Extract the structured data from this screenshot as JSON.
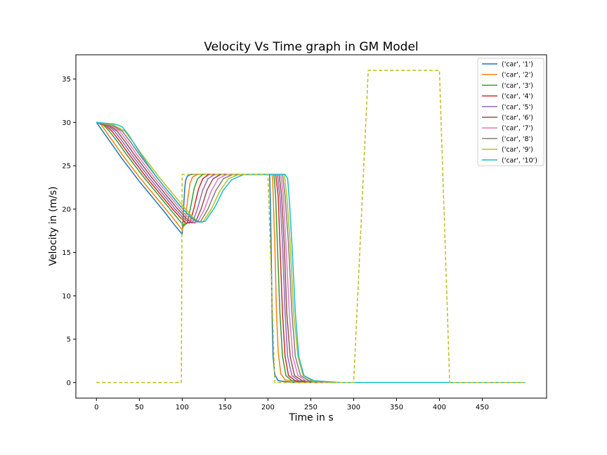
{
  "chart_data": {
    "type": "line",
    "title": "Velocity  Vs Time graph in GM Model",
    "xlabel": "Time in s",
    "ylabel": "Velocity in (m/s)",
    "xlim": [
      -24,
      525
    ],
    "ylim": [
      -1.8,
      37.8
    ],
    "xticks": [
      0,
      50,
      100,
      150,
      200,
      250,
      300,
      350,
      400,
      450
    ],
    "yticks": [
      0,
      5,
      10,
      15,
      20,
      25,
      30,
      35
    ],
    "grid": false,
    "legend_position": "top-right",
    "reference": {
      "color": "#bcbd22",
      "style": "dashed",
      "points": [
        [
          0,
          0
        ],
        [
          99,
          0
        ],
        [
          100,
          24
        ],
        [
          200,
          24
        ],
        [
          208,
          0
        ],
        [
          300,
          0
        ],
        [
          317,
          36
        ],
        [
          400,
          36
        ],
        [
          412,
          0
        ],
        [
          500,
          0
        ]
      ]
    },
    "series": [
      {
        "name": "('car', '1')",
        "color": "#1f77b4",
        "points": [
          [
            0,
            30
          ],
          [
            10,
            28.6
          ],
          [
            20,
            27.2
          ],
          [
            30,
            25.8
          ],
          [
            40,
            24.5
          ],
          [
            50,
            23.2
          ],
          [
            60,
            22
          ],
          [
            70,
            20.8
          ],
          [
            80,
            19.6
          ],
          [
            90,
            18.3
          ],
          [
            100,
            17.1
          ],
          [
            101,
            18.7
          ],
          [
            102,
            20.8
          ],
          [
            103,
            22.4
          ],
          [
            104,
            23.3
          ],
          [
            106,
            23.8
          ],
          [
            110,
            24
          ],
          [
            160,
            24
          ],
          [
            202,
            24
          ],
          [
            203,
            20
          ],
          [
            204,
            14
          ],
          [
            205,
            7
          ],
          [
            206,
            3
          ],
          [
            208,
            0.9
          ],
          [
            212,
            0.2
          ],
          [
            230,
            0
          ],
          [
            500,
            0
          ]
        ]
      },
      {
        "name": "('car', '2')",
        "color": "#ff7f0e",
        "points": [
          [
            0,
            30
          ],
          [
            5,
            29.8
          ],
          [
            10,
            29.1
          ],
          [
            20,
            27.7
          ],
          [
            30,
            26.3
          ],
          [
            40,
            25
          ],
          [
            50,
            23.7
          ],
          [
            60,
            22.5
          ],
          [
            70,
            21.3
          ],
          [
            80,
            20.1
          ],
          [
            90,
            18.9
          ],
          [
            100,
            17.6
          ],
          [
            103,
            18.4
          ],
          [
            106,
            20.8
          ],
          [
            109,
            22.9
          ],
          [
            112,
            23.7
          ],
          [
            118,
            24
          ],
          [
            205,
            24
          ],
          [
            206,
            22
          ],
          [
            208,
            16
          ],
          [
            210,
            8
          ],
          [
            212,
            3.5
          ],
          [
            215,
            1
          ],
          [
            220,
            0.3
          ],
          [
            240,
            0
          ],
          [
            500,
            0
          ]
        ]
      },
      {
        "name": "('car', '3')",
        "color": "#2ca02c",
        "points": [
          [
            0,
            30
          ],
          [
            8,
            29.7
          ],
          [
            15,
            29
          ],
          [
            25,
            27.7
          ],
          [
            35,
            26.3
          ],
          [
            45,
            25
          ],
          [
            55,
            23.7
          ],
          [
            65,
            22.5
          ],
          [
            75,
            21.3
          ],
          [
            85,
            20.1
          ],
          [
            95,
            18.9
          ],
          [
            102,
            18.1
          ],
          [
            106,
            18.4
          ],
          [
            110,
            20.3
          ],
          [
            114,
            22.4
          ],
          [
            118,
            23.5
          ],
          [
            124,
            24
          ],
          [
            207,
            24
          ],
          [
            209,
            21.5
          ],
          [
            211,
            16
          ],
          [
            214,
            8
          ],
          [
            217,
            3
          ],
          [
            221,
            0.8
          ],
          [
            228,
            0.2
          ],
          [
            250,
            0
          ],
          [
            500,
            0
          ]
        ]
      },
      {
        "name": "('car', '4')",
        "color": "#d62728",
        "points": [
          [
            0,
            30
          ],
          [
            10,
            29.7
          ],
          [
            18,
            29
          ],
          [
            28,
            27.7
          ],
          [
            38,
            26.3
          ],
          [
            48,
            25
          ],
          [
            58,
            23.7
          ],
          [
            68,
            22.5
          ],
          [
            78,
            21.3
          ],
          [
            88,
            20.1
          ],
          [
            98,
            19
          ],
          [
            104,
            18.4
          ],
          [
            109,
            18.4
          ],
          [
            114,
            20.2
          ],
          [
            119,
            22.3
          ],
          [
            124,
            23.5
          ],
          [
            131,
            24
          ],
          [
            209,
            24
          ],
          [
            212,
            21.5
          ],
          [
            214,
            16
          ],
          [
            217,
            8
          ],
          [
            220,
            3
          ],
          [
            224,
            0.8
          ],
          [
            232,
            0.2
          ],
          [
            255,
            0
          ],
          [
            500,
            0
          ]
        ]
      },
      {
        "name": "('car', '5')",
        "color": "#9467bd",
        "points": [
          [
            0,
            30
          ],
          [
            12,
            29.7
          ],
          [
            21,
            29
          ],
          [
            31,
            27.7
          ],
          [
            41,
            26.3
          ],
          [
            51,
            25
          ],
          [
            61,
            23.7
          ],
          [
            71,
            22.5
          ],
          [
            81,
            21.3
          ],
          [
            91,
            20.1
          ],
          [
            101,
            19
          ],
          [
            107,
            18.5
          ],
          [
            112,
            18.4
          ],
          [
            118,
            20.1
          ],
          [
            124,
            22.2
          ],
          [
            130,
            23.5
          ],
          [
            138,
            24
          ],
          [
            211,
            24
          ],
          [
            214,
            21.5
          ],
          [
            217,
            16
          ],
          [
            220,
            8
          ],
          [
            223,
            3
          ],
          [
            228,
            0.8
          ],
          [
            236,
            0.2
          ],
          [
            260,
            0
          ],
          [
            500,
            0
          ]
        ]
      },
      {
        "name": "('car', '6')",
        "color": "#8c564b",
        "points": [
          [
            0,
            30
          ],
          [
            14,
            29.7
          ],
          [
            24,
            29
          ],
          [
            34,
            27.7
          ],
          [
            44,
            26.3
          ],
          [
            54,
            25
          ],
          [
            64,
            23.7
          ],
          [
            74,
            22.5
          ],
          [
            84,
            21.3
          ],
          [
            94,
            20.1
          ],
          [
            104,
            19
          ],
          [
            110,
            18.5
          ],
          [
            115,
            18.4
          ],
          [
            122,
            20
          ],
          [
            129,
            22.2
          ],
          [
            136,
            23.5
          ],
          [
            145,
            24
          ],
          [
            213,
            24
          ],
          [
            216,
            21.5
          ],
          [
            219,
            16
          ],
          [
            222,
            8
          ],
          [
            226,
            3
          ],
          [
            231,
            0.8
          ],
          [
            240,
            0.2
          ],
          [
            265,
            0
          ],
          [
            500,
            0
          ]
        ]
      },
      {
        "name": "('car', '7')",
        "color": "#e377c2",
        "points": [
          [
            0,
            30
          ],
          [
            16,
            29.7
          ],
          [
            27,
            29
          ],
          [
            37,
            27.7
          ],
          [
            47,
            26.3
          ],
          [
            57,
            25
          ],
          [
            67,
            23.7
          ],
          [
            77,
            22.5
          ],
          [
            87,
            21.3
          ],
          [
            97,
            20.1
          ],
          [
            107,
            19
          ],
          [
            113,
            18.5
          ],
          [
            118,
            18.5
          ],
          [
            126,
            20
          ],
          [
            134,
            22.1
          ],
          [
            142,
            23.5
          ],
          [
            152,
            24
          ],
          [
            215,
            24
          ],
          [
            218,
            21.5
          ],
          [
            221,
            16
          ],
          [
            225,
            8
          ],
          [
            229,
            3
          ],
          [
            235,
            0.8
          ],
          [
            244,
            0.2
          ],
          [
            270,
            0
          ],
          [
            500,
            0
          ]
        ]
      },
      {
        "name": "('car', '8')",
        "color": "#7f7f7f",
        "points": [
          [
            0,
            30
          ],
          [
            18,
            29.7
          ],
          [
            30,
            29
          ],
          [
            40,
            27.7
          ],
          [
            50,
            26.3
          ],
          [
            60,
            25
          ],
          [
            70,
            23.7
          ],
          [
            80,
            22.5
          ],
          [
            90,
            21.3
          ],
          [
            100,
            20.1
          ],
          [
            110,
            19
          ],
          [
            116,
            18.6
          ],
          [
            121,
            18.5
          ],
          [
            130,
            20
          ],
          [
            139,
            22.1
          ],
          [
            148,
            23.5
          ],
          [
            159,
            24
          ],
          [
            217,
            24
          ],
          [
            220,
            21.5
          ],
          [
            224,
            16
          ],
          [
            228,
            8
          ],
          [
            232,
            3
          ],
          [
            238,
            0.8
          ],
          [
            248,
            0.2
          ],
          [
            275,
            0
          ],
          [
            500,
            0
          ]
        ]
      },
      {
        "name": "('car', '9')",
        "color": "#bcbd22",
        "points": [
          [
            0,
            30
          ],
          [
            20,
            29.7
          ],
          [
            33,
            29
          ],
          [
            43,
            27.7
          ],
          [
            53,
            26.3
          ],
          [
            63,
            25
          ],
          [
            73,
            23.7
          ],
          [
            83,
            22.5
          ],
          [
            93,
            21.3
          ],
          [
            103,
            20.1
          ],
          [
            113,
            19
          ],
          [
            119,
            18.6
          ],
          [
            124,
            18.5
          ],
          [
            134,
            20
          ],
          [
            144,
            22.1
          ],
          [
            154,
            23.5
          ],
          [
            166,
            24
          ],
          [
            219,
            24
          ],
          [
            222,
            21.5
          ],
          [
            226,
            16
          ],
          [
            230,
            8
          ],
          [
            235,
            3
          ],
          [
            241,
            0.8
          ],
          [
            252,
            0.2
          ],
          [
            280,
            0
          ],
          [
            500,
            0
          ]
        ]
      },
      {
        "name": "('car', '10')",
        "color": "#17becf",
        "points": [
          [
            0,
            30
          ],
          [
            22,
            29.8
          ],
          [
            30,
            29.5
          ],
          [
            38,
            28.5
          ],
          [
            48,
            26.9
          ],
          [
            58,
            25.4
          ],
          [
            68,
            24
          ],
          [
            78,
            22.7
          ],
          [
            88,
            21.5
          ],
          [
            98,
            20.3
          ],
          [
            108,
            19.3
          ],
          [
            116,
            18.7
          ],
          [
            122,
            18.5
          ],
          [
            127,
            18.6
          ],
          [
            138,
            20.2
          ],
          [
            148,
            22.2
          ],
          [
            158,
            23.4
          ],
          [
            172,
            24
          ],
          [
            200,
            24
          ],
          [
            220,
            24
          ],
          [
            223,
            23.5
          ],
          [
            225,
            21
          ],
          [
            228,
            16
          ],
          [
            232,
            8
          ],
          [
            236,
            3
          ],
          [
            242,
            0.8
          ],
          [
            254,
            0.2
          ],
          [
            285,
            0
          ],
          [
            500,
            0
          ]
        ]
      }
    ]
  }
}
